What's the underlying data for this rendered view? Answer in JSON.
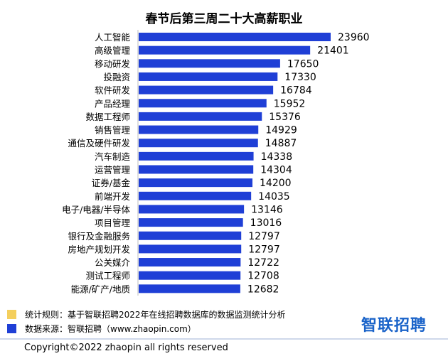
{
  "chart_data": {
    "type": "bar",
    "orientation": "horizontal",
    "title": "春节后第三周二十大高薪职业",
    "categories": [
      "人工智能",
      "高级管理",
      "移动研发",
      "投融资",
      "软件研发",
      "产品经理",
      "数据工程师",
      "销售管理",
      "通信及硬件研发",
      "汽车制造",
      "运营管理",
      "证券/基金",
      "前端开发",
      "电子/电器/半导体",
      "项目管理",
      "银行及金融服务",
      "房地产规划开发",
      "公关媒介",
      "测试工程师",
      "能源/矿产/地质"
    ],
    "values": [
      23960,
      21401,
      17650,
      17330,
      16784,
      15952,
      15376,
      14929,
      14887,
      14338,
      14304,
      14200,
      14035,
      13146,
      13016,
      12797,
      12797,
      12722,
      12708,
      12682
    ],
    "bar_color": "#1f3fd6",
    "xlim": [
      0,
      23960
    ],
    "grid": false
  },
  "legend": [
    {
      "color": "#f4cf5d",
      "text": "统计规则：基于智联招聘2022年在线招聘数据库的数据监测统计分析"
    },
    {
      "color": "#1f3fd6",
      "text": "数据来源：智联招聘（www.zhaopin.com）"
    }
  ],
  "brand": {
    "text": "智联招聘",
    "color": "#1a63c9"
  },
  "copyright": "Copyright©2022 zhaopin all rights reserved"
}
